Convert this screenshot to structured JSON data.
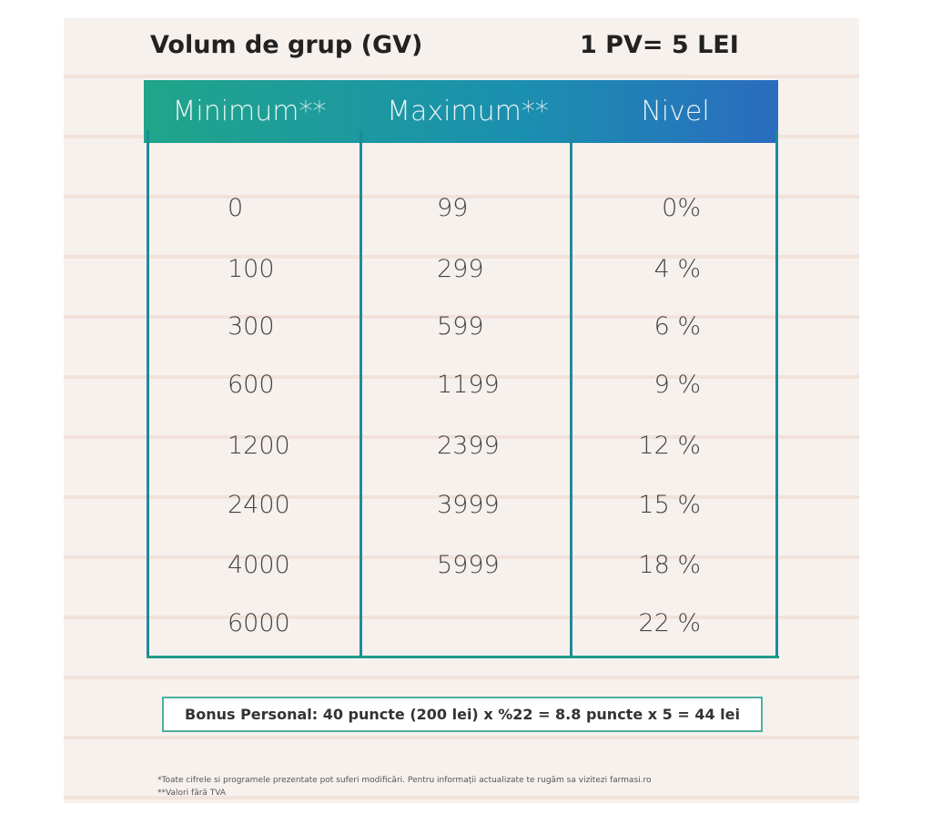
{
  "header": {
    "title": "Volum de grup (GV)",
    "rate": "1 PV= 5 LEI"
  },
  "table": {
    "columns": [
      "Minimum**",
      "Maximum**",
      "Nivel"
    ],
    "rows": [
      [
        "0",
        "99",
        "0%"
      ],
      [
        "100",
        "299",
        "4 %"
      ],
      [
        "300",
        "599",
        "6 %"
      ],
      [
        "600",
        "1199",
        "9 %"
      ],
      [
        "1200",
        "2399",
        "12 %"
      ],
      [
        "2400",
        "3999",
        "15 %"
      ],
      [
        "4000",
        "5999",
        "18 %"
      ],
      [
        "6000",
        null,
        "22 %"
      ]
    ]
  },
  "bonus": "Bonus Personal: 40 puncte (200 lei) x %22 = 8.8 puncte x 5 = 44 lei",
  "footnotes": [
    "*Toate cifrele si programele prezentate pot suferi modificări. Pentru informații actualizate te rugăm sa vizitezi farmasi.ro",
    "**Valori fără TVA"
  ]
}
